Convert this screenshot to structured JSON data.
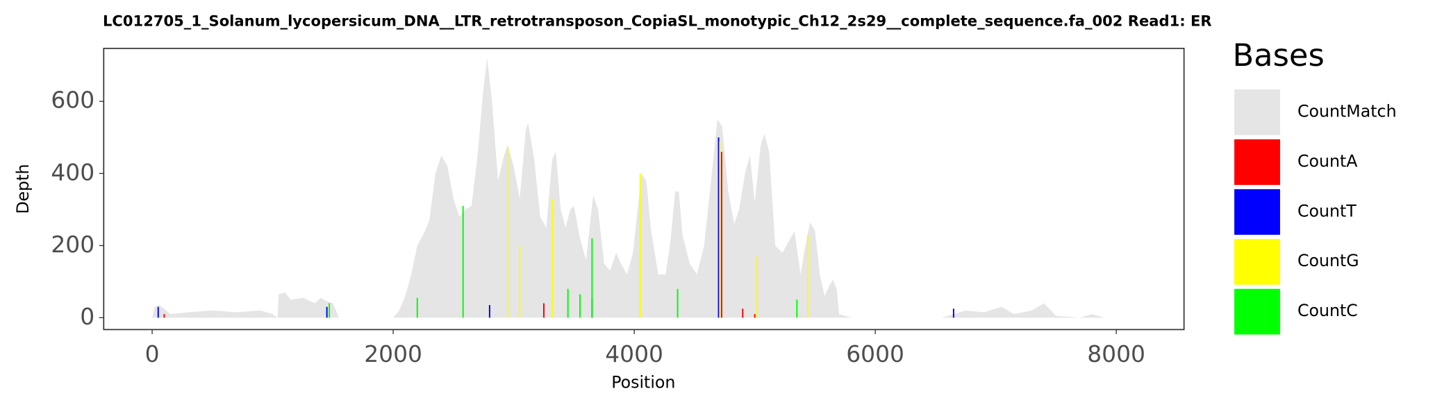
{
  "chart_data": {
    "type": "coverage",
    "title": "LC012705_1_Solanum_lycopersicum_DNA__LTR_retrotransposon_CopiaSL_monotypic_Ch12_2s29__complete_sequence.fa_002   Read1: ER",
    "x_label": "Position",
    "y_label": "Depth",
    "legend_title": "Bases",
    "xlim": [
      -402,
      8562
    ],
    "ylim": [
      -33,
      747
    ],
    "xticks": [
      0,
      2000,
      4000,
      6000,
      8000
    ],
    "yticks": [
      0,
      200,
      400,
      600
    ],
    "grid": false,
    "series": [
      {
        "name": "CountMatch",
        "color": "#e5e5e5",
        "kind": "area",
        "x": [
          0,
          20,
          60,
          100,
          150,
          300,
          500,
          700,
          900,
          1000,
          1040,
          1050,
          1100,
          1150,
          1250,
          1350,
          1400,
          1450,
          1500,
          1550,
          2000,
          2050,
          2100,
          2150,
          2200,
          2250,
          2300,
          2350,
          2400,
          2450,
          2500,
          2550,
          2600,
          2650,
          2700,
          2750,
          2780,
          2820,
          2870,
          2920,
          2950,
          3000,
          3050,
          3100,
          3120,
          3170,
          3220,
          3270,
          3320,
          3350,
          3390,
          3430,
          3470,
          3500,
          3550,
          3600,
          3660,
          3700,
          3750,
          3800,
          3850,
          3890,
          3940,
          3990,
          4060,
          4100,
          4140,
          4200,
          4260,
          4300,
          4340,
          4370,
          4400,
          4460,
          4520,
          4580,
          4650,
          4690,
          4730,
          4780,
          4830,
          4870,
          4920,
          4960,
          5000,
          5050,
          5080,
          5120,
          5170,
          5230,
          5280,
          5330,
          5380,
          5420,
          5460,
          5500,
          5540,
          5580,
          5620,
          5650,
          5680,
          5700,
          5800,
          6550,
          6650,
          6750,
          6900,
          7050,
          7150,
          7300,
          7400,
          7500,
          7700,
          7800,
          7900
        ],
        "values": [
          0,
          30,
          35,
          25,
          10,
          15,
          20,
          15,
          20,
          10,
          0,
          65,
          70,
          50,
          55,
          40,
          55,
          45,
          40,
          0,
          0,
          20,
          60,
          120,
          200,
          230,
          270,
          400,
          450,
          420,
          330,
          280,
          300,
          310,
          450,
          640,
          720,
          600,
          380,
          450,
          480,
          420,
          330,
          520,
          540,
          440,
          280,
          250,
          440,
          460,
          300,
          250,
          300,
          310,
          220,
          160,
          340,
          300,
          150,
          130,
          180,
          150,
          120,
          180,
          400,
          380,
          240,
          120,
          120,
          210,
          350,
          350,
          230,
          150,
          120,
          200,
          420,
          550,
          530,
          350,
          260,
          300,
          400,
          450,
          320,
          480,
          510,
          460,
          200,
          180,
          210,
          240,
          120,
          200,
          265,
          240,
          120,
          60,
          90,
          105,
          80,
          10,
          0,
          0,
          10,
          20,
          15,
          30,
          10,
          20,
          40,
          5,
          0,
          10,
          0
        ]
      },
      {
        "name": "CountA",
        "color": "#ff0000",
        "kind": "spike",
        "x": [
          100,
          3250,
          4725,
          4900,
          5000
        ],
        "values": [
          10,
          40,
          460,
          25,
          10
        ]
      },
      {
        "name": "CountT",
        "color": "#0000ff",
        "kind": "spike",
        "x": [
          50,
          1450,
          2800,
          3650,
          4700,
          6650
        ],
        "values": [
          30,
          30,
          35,
          55,
          500,
          25
        ]
      },
      {
        "name": "CountG",
        "color": "#ffff00",
        "kind": "spike",
        "x": [
          2950,
          3050,
          3320,
          4050,
          4710,
          5020,
          5440
        ],
        "values": [
          470,
          200,
          330,
          400,
          490,
          170,
          230
        ]
      },
      {
        "name": "CountC",
        "color": "#00ff00",
        "kind": "spike",
        "x": [
          1470,
          2200,
          2580,
          3450,
          3550,
          3650,
          4360,
          5350
        ],
        "values": [
          40,
          55,
          310,
          80,
          65,
          220,
          80,
          50
        ]
      }
    ]
  }
}
